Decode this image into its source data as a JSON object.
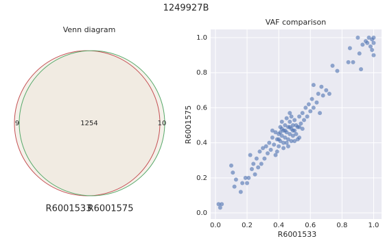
{
  "title": "1249927B",
  "chart_data": [
    {
      "type": "venn",
      "title": "Venn diagram",
      "sets": [
        {
          "name": "R6001533",
          "color": "#c44e52",
          "only": 9
        },
        {
          "name": "R6001575",
          "color": "#55a868",
          "only": 10
        }
      ],
      "intersection": 1254,
      "fill": "#efe7dc"
    },
    {
      "type": "scatter",
      "title": "VAF comparison",
      "x_label": "R6001533",
      "y_label": "R6001575",
      "color": "#4c72b0",
      "grid": true,
      "xlim": [
        -0.03,
        1.05
      ],
      "ylim": [
        -0.035,
        1.047
      ],
      "xticks": [
        {
          "value": 0,
          "label": "0.0"
        },
        0.2,
        0.4,
        0.6,
        0.8,
        {
          "value": 1,
          "label": "1.0"
        }
      ],
      "yticks": [
        {
          "value": 0,
          "label": "0.0"
        },
        0.2,
        0.4,
        0.6,
        0.8,
        {
          "value": 1,
          "label": "1.0"
        }
      ],
      "x": [
        0.02,
        0.03,
        0.04,
        0.1,
        0.11,
        0.12,
        0.13,
        0.16,
        0.17,
        0.19,
        0.2,
        0.21,
        0.22,
        0.23,
        0.24,
        0.25,
        0.26,
        0.27,
        0.28,
        0.29,
        0.3,
        0.31,
        0.32,
        0.33,
        0.34,
        0.35,
        0.36,
        0.37,
        0.38,
        0.38,
        0.39,
        0.4,
        0.4,
        0.41,
        0.41,
        0.42,
        0.42,
        0.43,
        0.43,
        0.44,
        0.44,
        0.45,
        0.45,
        0.46,
        0.46,
        0.47,
        0.47,
        0.48,
        0.48,
        0.49,
        0.49,
        0.5,
        0.5,
        0.51,
        0.51,
        0.52,
        0.53,
        0.53,
        0.54,
        0.55,
        0.56,
        0.57,
        0.58,
        0.59,
        0.6,
        0.61,
        0.62,
        0.62,
        0.64,
        0.65,
        0.66,
        0.67,
        0.68,
        0.7,
        0.72,
        0.74,
        0.77,
        0.84,
        0.85,
        0.87,
        0.9,
        0.91,
        0.92,
        0.93,
        0.95,
        0.96,
        0.97,
        0.98,
        0.99,
        1.0,
        1.0,
        1.0,
        0.99,
        0.43,
        0.36,
        0.47,
        0.52,
        0.39,
        0.45,
        0.48,
        0.46,
        0.41,
        0.5,
        0.44,
        0.42,
        0.49,
        0.47,
        0.4,
        0.53,
        0.55
      ],
      "y": [
        0.05,
        0.03,
        0.05,
        0.27,
        0.23,
        0.15,
        0.19,
        0.12,
        0.17,
        0.2,
        0.17,
        0.2,
        0.33,
        0.25,
        0.28,
        0.22,
        0.31,
        0.26,
        0.35,
        0.28,
        0.37,
        0.31,
        0.38,
        0.34,
        0.4,
        0.36,
        0.43,
        0.39,
        0.46,
        0.33,
        0.42,
        0.45,
        0.38,
        0.49,
        0.41,
        0.44,
        0.52,
        0.4,
        0.47,
        0.5,
        0.43,
        0.46,
        0.54,
        0.42,
        0.49,
        0.45,
        0.52,
        0.48,
        0.41,
        0.5,
        0.44,
        0.47,
        0.53,
        0.45,
        0.5,
        0.49,
        0.55,
        0.43,
        0.51,
        0.57,
        0.53,
        0.6,
        0.55,
        0.62,
        0.58,
        0.65,
        0.6,
        0.73,
        0.63,
        0.68,
        0.57,
        0.72,
        0.67,
        0.7,
        0.68,
        0.84,
        0.81,
        0.86,
        0.94,
        0.86,
        1.0,
        0.91,
        0.82,
        0.96,
        0.98,
        0.97,
        1.0,
        0.95,
        0.99,
        1.0,
        0.97,
        0.9,
        0.93,
        0.37,
        0.47,
        0.57,
        0.42,
        0.35,
        0.4,
        0.55,
        0.38,
        0.46,
        0.41,
        0.47,
        0.48,
        0.47,
        0.49,
        0.42,
        0.49,
        0.48
      ]
    }
  ]
}
